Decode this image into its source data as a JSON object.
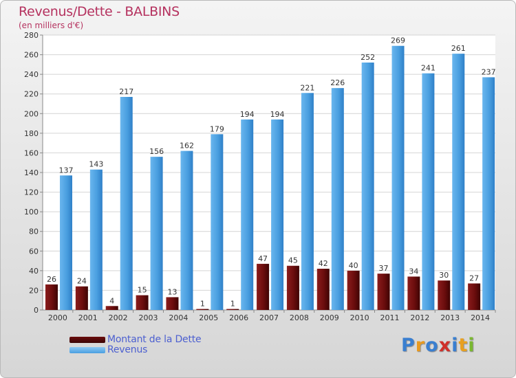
{
  "chart_data": {
    "type": "bar",
    "title": "Revenus/Dette - BALBINS",
    "subtitle": "(en milliers d'€)",
    "categories": [
      "2000",
      "2001",
      "2002",
      "2003",
      "2004",
      "2005",
      "2006",
      "2007",
      "2008",
      "2009",
      "2010",
      "2011",
      "2012",
      "2013",
      "2014"
    ],
    "series": [
      {
        "name": "Montant de la Dette",
        "color": "#6b0d0d",
        "values": [
          26,
          24,
          4,
          15,
          13,
          1,
          1,
          47,
          45,
          42,
          40,
          37,
          34,
          30,
          27
        ]
      },
      {
        "name": "Revenus",
        "color": "#4a9fe0",
        "values": [
          137,
          143,
          217,
          156,
          162,
          179,
          194,
          194,
          221,
          226,
          252,
          269,
          241,
          261,
          237
        ]
      }
    ],
    "ylim": [
      0,
      280
    ],
    "yticks": [
      0,
      20,
      40,
      60,
      80,
      100,
      120,
      140,
      160,
      180,
      200,
      220,
      240,
      260,
      280
    ],
    "grid": true,
    "legend_position": "bottom-left"
  },
  "legend": {
    "debt_label": "Montant de la Dette",
    "revenue_label": "Revenus",
    "debt_color": "#6b0d0d",
    "revenue_color": "#4a9fe0"
  },
  "logo": {
    "letters": [
      "P",
      "r",
      "o",
      "x",
      "i",
      "t",
      "i"
    ],
    "colors": [
      "#3a7fd0",
      "#e89a20",
      "#3a7fd0",
      "#d0302a",
      "#3a7fd0",
      "#e8a020",
      "#7ab830"
    ]
  }
}
